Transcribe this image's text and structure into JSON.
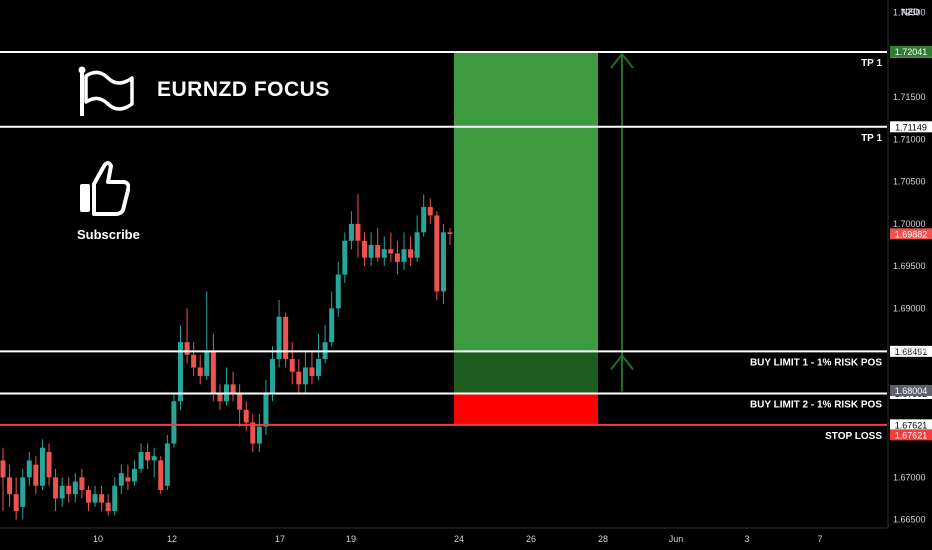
{
  "brand": {
    "title": "EURNZD FOCUS",
    "subscribe": "Subscribe"
  },
  "currency": "NZD",
  "colors": {
    "up": "#26a69a",
    "down": "#ef5350",
    "target": "#3d9a40",
    "target_dark": "#1e5c20",
    "stop": "#ff0000",
    "line": "#ffffff",
    "stop_line": "#f23d3d",
    "arrow": "#1e6b2a"
  },
  "chart_data": {
    "type": "candlestick",
    "symbol": "EURNZD",
    "ylim": [
      1.664,
      1.7265
    ],
    "y_ticks": [
      1.665,
      1.67,
      1.675,
      1.68,
      1.685,
      1.69,
      1.695,
      1.7,
      1.705,
      1.71,
      1.715,
      1.725
    ],
    "y_tick_labels": [
      "1.66500",
      "1.67000",
      "1.67500",
      "1.68000",
      "1.68500",
      "1.69000",
      "1.69500",
      "1.70000",
      "1.70500",
      "1.71000",
      "1.71500",
      "1.72500"
    ],
    "x_tick_labels": [
      "10",
      "12",
      "17",
      "19",
      "24",
      "26",
      "28",
      "Jun",
      "3",
      "7"
    ],
    "levels": [
      {
        "label": "TP 1",
        "price": 1.72035,
        "tag": "1.72035",
        "color": "#ffffff"
      },
      {
        "label": "TP 1",
        "price": 1.71149,
        "tag": "1.71149",
        "color": "#ffffff"
      },
      {
        "label": "BUY LIMIT 1 - 1% RISK POS",
        "price": 1.68491,
        "tag": "1.68491",
        "color": "#ffffff"
      },
      {
        "label": "BUY LIMIT 2 - 1% RISK POS",
        "price": 1.67992,
        "tag": "1.67992",
        "color": "#ffffff"
      },
      {
        "label": "STOP LOSS",
        "price": 1.67621,
        "tag": "1.67621",
        "color": "#f23d3d"
      }
    ],
    "price_tags": [
      {
        "value": 1.72041,
        "text": "1.72041",
        "bg": "#2e7d32"
      },
      {
        "value": 1.69882,
        "text": "1.69882",
        "bg": "#ef5350"
      },
      {
        "value": 1.68004,
        "text": "1.68004",
        "bg": "#5d606b"
      },
      {
        "value": 1.67621,
        "text": "1.67621",
        "bg": "#f23d3d"
      }
    ],
    "position": {
      "entry": 1.68491,
      "entry2": 1.67992,
      "stop": 1.67621,
      "target": 1.72035
    },
    "candles": [
      [
        1.672,
        1.67,
        1.6735,
        1.666
      ],
      [
        1.67,
        1.668,
        1.6715,
        1.6665
      ],
      [
        1.668,
        1.666,
        1.67,
        1.665
      ],
      [
        1.6665,
        1.67,
        1.671,
        1.665
      ],
      [
        1.67,
        1.672,
        1.673,
        1.669
      ],
      [
        1.6715,
        1.669,
        1.6725,
        1.668
      ],
      [
        1.669,
        1.6735,
        1.6745,
        1.6685
      ],
      [
        1.673,
        1.67,
        1.674,
        1.669
      ],
      [
        1.67,
        1.6675,
        1.671,
        1.666
      ],
      [
        1.6675,
        1.669,
        1.67,
        1.6665
      ],
      [
        1.669,
        1.668,
        1.67,
        1.667
      ],
      [
        1.668,
        1.6695,
        1.6705,
        1.667
      ],
      [
        1.67,
        1.6685,
        1.671,
        1.6675
      ],
      [
        1.6685,
        1.667,
        1.669,
        1.666
      ],
      [
        1.667,
        1.668,
        1.669,
        1.6665
      ],
      [
        1.668,
        1.667,
        1.669,
        1.666
      ],
      [
        1.667,
        1.666,
        1.668,
        1.6655
      ],
      [
        1.666,
        1.669,
        1.67,
        1.6655
      ],
      [
        1.669,
        1.6705,
        1.6715,
        1.668
      ],
      [
        1.67,
        1.6695,
        1.6715,
        1.6685
      ],
      [
        1.6695,
        1.671,
        1.672,
        1.669
      ],
      [
        1.671,
        1.673,
        1.674,
        1.6705
      ],
      [
        1.673,
        1.672,
        1.674,
        1.671
      ],
      [
        1.672,
        1.6725,
        1.6735,
        1.67
      ],
      [
        1.672,
        1.6685,
        1.6725,
        1.668
      ],
      [
        1.669,
        1.674,
        1.675,
        1.6685
      ],
      [
        1.674,
        1.679,
        1.68,
        1.6735
      ],
      [
        1.679,
        1.686,
        1.688,
        1.678
      ],
      [
        1.686,
        1.6845,
        1.69,
        1.6835
      ],
      [
        1.6845,
        1.683,
        1.686,
        1.682
      ],
      [
        1.683,
        1.682,
        1.6845,
        1.681
      ],
      [
        1.682,
        1.685,
        1.692,
        1.6815
      ],
      [
        1.685,
        1.68,
        1.687,
        1.679
      ],
      [
        1.68,
        1.679,
        1.681,
        1.678
      ],
      [
        1.679,
        1.681,
        1.683,
        1.6785
      ],
      [
        1.681,
        1.68,
        1.6825,
        1.679
      ],
      [
        1.68,
        1.678,
        1.681,
        1.676
      ],
      [
        1.678,
        1.6765,
        1.679,
        1.6755
      ],
      [
        1.6765,
        1.674,
        1.6775,
        1.673
      ],
      [
        1.674,
        1.676,
        1.6775,
        1.673
      ],
      [
        1.676,
        1.68,
        1.6815,
        1.675
      ],
      [
        1.68,
        1.684,
        1.6855,
        1.679
      ],
      [
        1.684,
        1.689,
        1.691,
        1.683
      ],
      [
        1.689,
        1.684,
        1.6895,
        1.683
      ],
      [
        1.684,
        1.6825,
        1.686,
        1.681
      ],
      [
        1.6825,
        1.681,
        1.684,
        1.68
      ],
      [
        1.681,
        1.683,
        1.685,
        1.68
      ],
      [
        1.683,
        1.682,
        1.685,
        1.681
      ],
      [
        1.682,
        1.684,
        1.687,
        1.6815
      ],
      [
        1.684,
        1.686,
        1.688,
        1.6835
      ],
      [
        1.686,
        1.69,
        1.692,
        1.6855
      ],
      [
        1.69,
        1.694,
        1.6955,
        1.689
      ],
      [
        1.694,
        1.698,
        1.699,
        1.693
      ],
      [
        1.698,
        1.7,
        1.7015,
        1.697
      ],
      [
        1.7,
        1.698,
        1.7035,
        1.696
      ],
      [
        1.698,
        1.696,
        1.699,
        1.695
      ],
      [
        1.696,
        1.6975,
        1.699,
        1.695
      ],
      [
        1.6975,
        1.696,
        1.6995,
        1.6955
      ],
      [
        1.696,
        1.697,
        1.6985,
        1.695
      ],
      [
        1.697,
        1.6965,
        1.699,
        1.6955
      ],
      [
        1.6965,
        1.6955,
        1.698,
        1.694
      ],
      [
        1.6955,
        1.697,
        1.699,
        1.6945
      ],
      [
        1.697,
        1.696,
        1.6985,
        1.695
      ],
      [
        1.696,
        1.699,
        1.701,
        1.6955
      ],
      [
        1.699,
        1.702,
        1.7035,
        1.6985
      ],
      [
        1.702,
        1.701,
        1.703,
        1.7
      ],
      [
        1.701,
        1.692,
        1.7015,
        1.691
      ],
      [
        1.692,
        1.699,
        1.7,
        1.6905
      ],
      [
        1.699,
        1.6988,
        1.6995,
        1.6975
      ]
    ]
  }
}
